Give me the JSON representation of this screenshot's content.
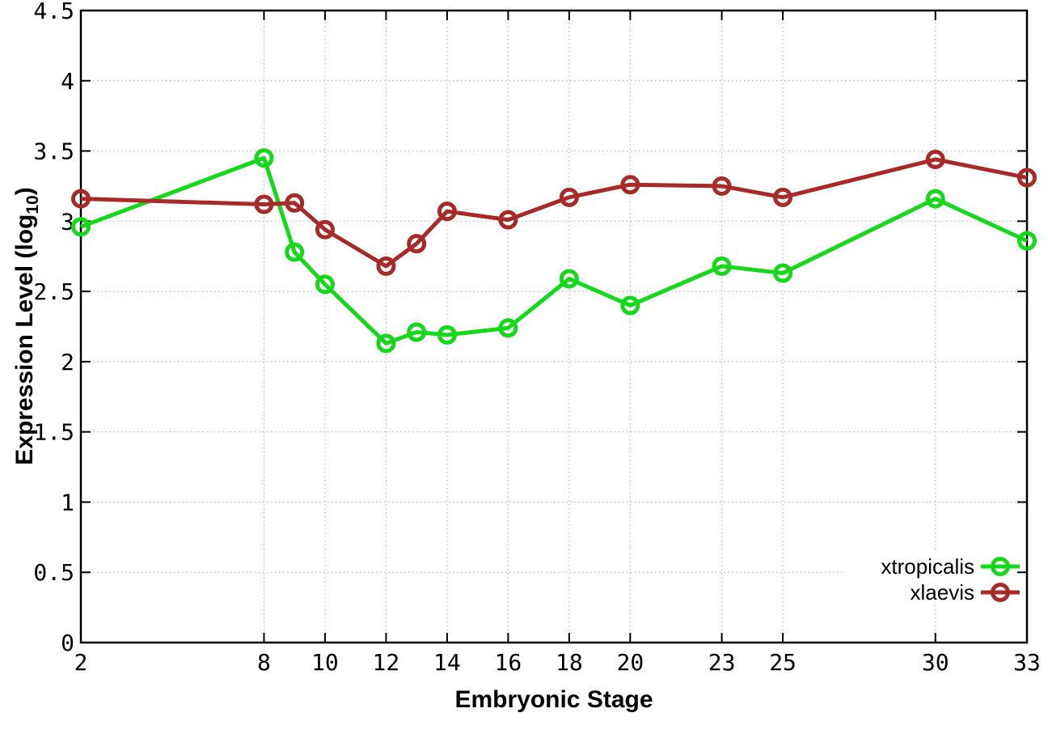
{
  "figure": {
    "background_color": "#ffffff",
    "text_color": "#000000",
    "xlabel": "Embryonic Stage",
    "ylabel": {
      "prefix": "Expression Level (log",
      "sub": "10",
      "suffix": ")"
    }
  },
  "chart_data": {
    "type": "line",
    "title": "",
    "xlabel": "Embryonic Stage",
    "ylabel": "Expression Level (log10)",
    "x": [
      2,
      8,
      9,
      10,
      12,
      13,
      14,
      16,
      18,
      20,
      23,
      25,
      30,
      33
    ],
    "series": [
      {
        "name": "xtropicalis",
        "color": "#16d81b",
        "values": [
          2.96,
          3.45,
          2.78,
          2.55,
          2.13,
          2.21,
          2.19,
          2.24,
          2.59,
          2.4,
          2.68,
          2.63,
          3.16,
          2.86
        ]
      },
      {
        "name": "xlaevis",
        "color": "#a62a27",
        "values": [
          3.16,
          3.12,
          3.13,
          2.94,
          2.68,
          2.84,
          3.07,
          3.01,
          3.17,
          3.26,
          3.25,
          3.17,
          3.44,
          3.31
        ]
      }
    ],
    "xlim": [
      2,
      33
    ],
    "ylim": [
      0,
      4.5
    ],
    "xticks": {
      "values": [
        2,
        8,
        10,
        12,
        14,
        16,
        18,
        20,
        23,
        25,
        30,
        33
      ],
      "labels": [
        "2",
        "8",
        "10",
        "12",
        "14",
        "16",
        "18",
        "20",
        "23",
        "25",
        "30",
        "33"
      ]
    },
    "yticks": {
      "values": [
        0,
        0.5,
        1,
        1.5,
        2,
        2.5,
        3,
        3.5,
        4,
        4.5
      ],
      "labels": [
        "0",
        "0.5",
        "1",
        "1.5",
        "2",
        "2.5",
        "3",
        "3.5",
        "4",
        "4.5"
      ]
    },
    "grid": true,
    "grid_style": "dotted",
    "grid_color": "#bdbdbd",
    "marker": "open-circle",
    "line_width": 5,
    "legend_position": "bottom-right",
    "legend": [
      "xtropicalis",
      "xlaevis"
    ]
  }
}
